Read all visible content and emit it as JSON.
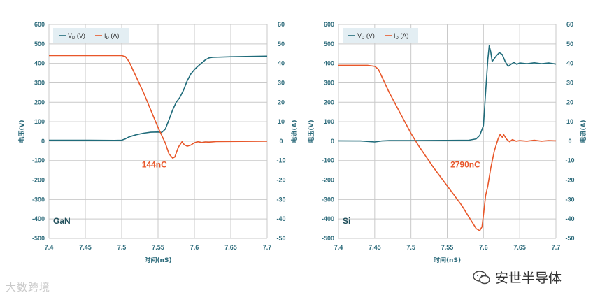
{
  "colors": {
    "vd": "#1f6b7a",
    "id": "#e8572a",
    "grid": "#c9c9c9",
    "legend_bg": "#e3eef3",
    "axis_text": "#2d6b7b"
  },
  "watermark": "大数跨境",
  "brand": "安世半导体",
  "chart_data": [
    {
      "type": "line",
      "panel_label": "GaN",
      "annotation": "144nC",
      "xlabel": "时间(nS)",
      "ylabel_left": "电压(V)",
      "ylabel_right": "电流(A)",
      "xlim": [
        7.4,
        7.7
      ],
      "ylim_left": [
        -500,
        600
      ],
      "ylim_right": [
        -50,
        60
      ],
      "xticks": [
        "7.4",
        "7.45",
        "7.5",
        "7.55",
        "7.6",
        "7.65",
        "7.7"
      ],
      "yticks_left": [
        "600",
        "500",
        "400",
        "300",
        "200",
        "100",
        "0",
        "-100",
        "-200",
        "-300",
        "-400",
        "-500"
      ],
      "yticks_right": [
        "60",
        "50",
        "40",
        "30",
        "20",
        "10",
        "0",
        "-10",
        "-20",
        "-30",
        "-40",
        "-50"
      ],
      "legend": [
        {
          "main": "V",
          "sub": "D",
          "unit": " (V)"
        },
        {
          "main": "I",
          "sub": "D",
          "unit": " (A)"
        }
      ],
      "series": [
        {
          "key": "vd",
          "axis": "left",
          "points": [
            [
              7.4,
              5
            ],
            [
              7.45,
              5
            ],
            [
              7.49,
              4
            ],
            [
              7.5,
              5
            ],
            [
              7.505,
              12
            ],
            [
              7.51,
              22
            ],
            [
              7.52,
              33
            ],
            [
              7.53,
              41
            ],
            [
              7.54,
              46
            ],
            [
              7.55,
              47
            ],
            [
              7.555,
              45
            ],
            [
              7.56,
              62
            ],
            [
              7.565,
              110
            ],
            [
              7.57,
              160
            ],
            [
              7.575,
              200
            ],
            [
              7.58,
              225
            ],
            [
              7.585,
              262
            ],
            [
              7.59,
              310
            ],
            [
              7.595,
              345
            ],
            [
              7.6,
              368
            ],
            [
              7.605,
              386
            ],
            [
              7.61,
              402
            ],
            [
              7.615,
              418
            ],
            [
              7.62,
              428
            ],
            [
              7.625,
              431
            ],
            [
              7.65,
              434
            ],
            [
              7.7,
              437
            ]
          ]
        },
        {
          "key": "id",
          "axis": "right",
          "points": [
            [
              7.4,
              44
            ],
            [
              7.5,
              44
            ],
            [
              7.505,
              43.5
            ],
            [
              7.51,
              41
            ],
            [
              7.52,
              33
            ],
            [
              7.53,
              25
            ],
            [
              7.54,
              16
            ],
            [
              7.55,
              7
            ],
            [
              7.56,
              -1
            ],
            [
              7.565,
              -6.5
            ],
            [
              7.57,
              -8.7
            ],
            [
              7.573,
              -8.2
            ],
            [
              7.578,
              -3
            ],
            [
              7.583,
              -0.3
            ],
            [
              7.586,
              -1.8
            ],
            [
              7.59,
              -2.6
            ],
            [
              7.595,
              -2
            ],
            [
              7.6,
              -0.8
            ],
            [
              7.605,
              -0.3
            ],
            [
              7.61,
              -0.7
            ],
            [
              7.615,
              -0.4
            ],
            [
              7.62,
              -0.5
            ],
            [
              7.63,
              -0.2
            ],
            [
              7.7,
              0
            ]
          ]
        }
      ]
    },
    {
      "type": "line",
      "panel_label": "Si",
      "annotation": "2790nC",
      "xlabel": "时间(nS)",
      "ylabel_left": "电压(V)",
      "ylabel_right": "电流(A)",
      "xlim": [
        7.4,
        7.7
      ],
      "ylim_left": [
        -500,
        600
      ],
      "ylim_right": [
        -50,
        60
      ],
      "xticks": [
        "7.4",
        "7.45",
        "7.5",
        "7.55",
        "7.6",
        "7.65",
        "7.7"
      ],
      "yticks_left": [
        "600",
        "500",
        "400",
        "300",
        "200",
        "100",
        "0",
        "-100",
        "-200",
        "-300",
        "-400",
        "-500"
      ],
      "yticks_right": [
        "60",
        "50",
        "40",
        "30",
        "20",
        "10",
        "0",
        "-10",
        "-20",
        "-30",
        "-40",
        "-50"
      ],
      "legend": [
        {
          "main": "V",
          "sub": "D",
          "unit": " (V)"
        },
        {
          "main": "I",
          "sub": "D",
          "unit": " (A)"
        }
      ],
      "series": [
        {
          "key": "vd",
          "axis": "left",
          "points": [
            [
              7.4,
              2
            ],
            [
              7.43,
              1
            ],
            [
              7.45,
              -4
            ],
            [
              7.46,
              1
            ],
            [
              7.47,
              3
            ],
            [
              7.5,
              3
            ],
            [
              7.55,
              4
            ],
            [
              7.58,
              5
            ],
            [
              7.59,
              12
            ],
            [
              7.595,
              30
            ],
            [
              7.6,
              80
            ],
            [
              7.603,
              250
            ],
            [
              7.606,
              420
            ],
            [
              7.608,
              490
            ],
            [
              7.61,
              460
            ],
            [
              7.612,
              410
            ],
            [
              7.615,
              425
            ],
            [
              7.618,
              440
            ],
            [
              7.622,
              455
            ],
            [
              7.626,
              445
            ],
            [
              7.63,
              410
            ],
            [
              7.634,
              385
            ],
            [
              7.638,
              395
            ],
            [
              7.642,
              405
            ],
            [
              7.646,
              395
            ],
            [
              7.65,
              402
            ],
            [
              7.66,
              398
            ],
            [
              7.67,
              403
            ],
            [
              7.68,
              398
            ],
            [
              7.69,
              402
            ],
            [
              7.7,
              396
            ]
          ]
        },
        {
          "key": "id",
          "axis": "right",
          "points": [
            [
              7.4,
              39
            ],
            [
              7.44,
              39
            ],
            [
              7.45,
              38.5
            ],
            [
              7.455,
              37
            ],
            [
              7.46,
              33
            ],
            [
              7.47,
              25
            ],
            [
              7.48,
              18
            ],
            [
              7.49,
              11
            ],
            [
              7.5,
              4
            ],
            [
              7.51,
              -2
            ],
            [
              7.52,
              -7.5
            ],
            [
              7.53,
              -13
            ],
            [
              7.54,
              -18
            ],
            [
              7.55,
              -23
            ],
            [
              7.56,
              -28
            ],
            [
              7.57,
              -33
            ],
            [
              7.58,
              -39
            ],
            [
              7.59,
              -45
            ],
            [
              7.595,
              -46
            ],
            [
              7.598,
              -44
            ],
            [
              7.6,
              -38
            ],
            [
              7.603,
              -28
            ],
            [
              7.606,
              -23
            ],
            [
              7.61,
              -14
            ],
            [
              7.615,
              -5
            ],
            [
              7.62,
              1
            ],
            [
              7.623,
              3.5
            ],
            [
              7.626,
              2
            ],
            [
              7.628,
              3.3
            ],
            [
              7.632,
              1
            ],
            [
              7.636,
              -0.3
            ],
            [
              7.64,
              0.8
            ],
            [
              7.645,
              0
            ],
            [
              7.65,
              0.3
            ],
            [
              7.66,
              0
            ],
            [
              7.67,
              0.5
            ],
            [
              7.68,
              0
            ],
            [
              7.69,
              0.3
            ],
            [
              7.7,
              0.2
            ]
          ]
        }
      ]
    }
  ]
}
